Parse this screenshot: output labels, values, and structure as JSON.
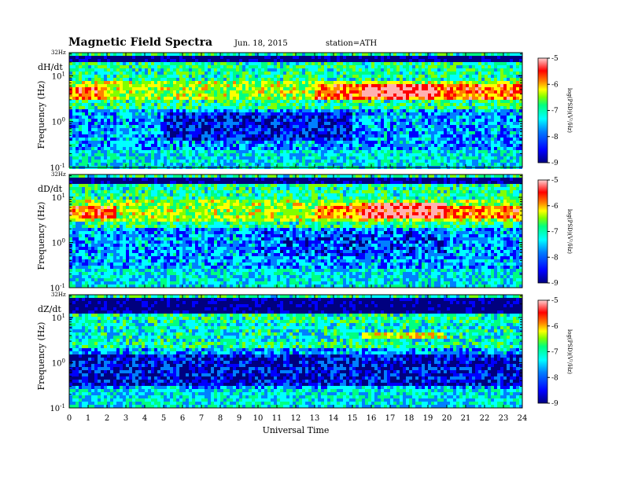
{
  "header": {
    "title": "Magnetic  Field  Spectra",
    "date": "Jun. 18, 2015",
    "station": "station=ATH"
  },
  "chart_data": [
    {
      "type": "heatmap",
      "panel_label": "dH/dt",
      "xlabel": "",
      "ylabel": "Frequency  (Hz)",
      "y_scale": "log",
      "ylim": [
        0.1,
        32
      ],
      "y_ticks": [
        {
          "value": 0.1,
          "base": "10",
          "exp": "-1"
        },
        {
          "value": 1,
          "base": "10",
          "exp": "0"
        },
        {
          "value": 10,
          "base": "10",
          "exp": "1"
        }
      ],
      "y_top_label": "32Hz",
      "colorbar": {
        "range": [
          -9,
          -5
        ],
        "ticks": [
          "-5",
          "-6",
          "-7",
          "-8",
          "-9"
        ],
        "label": "log(PSD)(V²/Hz)"
      },
      "features": [
        {
          "t0": 0,
          "t1": 24,
          "f0": 20,
          "f1": 26,
          "level": -8.9
        },
        {
          "t0": 0,
          "t1": 24,
          "f0": 3,
          "f1": 8,
          "level": -6.7
        },
        {
          "t0": 0,
          "t1": 2,
          "f0": 3,
          "f1": 6,
          "level": -5.9
        },
        {
          "t0": 13,
          "t1": 24,
          "f0": 3.2,
          "f1": 6.5,
          "level": -5.9
        },
        {
          "t0": 15.5,
          "t1": 19.5,
          "f0": 3.5,
          "f1": 7,
          "level": -5.3
        },
        {
          "t0": 5,
          "t1": 15,
          "f0": 0.4,
          "f1": 1.5,
          "level": -8.4
        }
      ]
    },
    {
      "type": "heatmap",
      "panel_label": "dD/dt",
      "xlabel": "",
      "ylabel": "Frequency  (Hz)",
      "y_scale": "log",
      "ylim": [
        0.1,
        32
      ],
      "y_ticks": [
        {
          "value": 0.1,
          "base": "10",
          "exp": "-1"
        },
        {
          "value": 1,
          "base": "10",
          "exp": "0"
        },
        {
          "value": 10,
          "base": "10",
          "exp": "1"
        }
      ],
      "y_top_label": "32Hz",
      "colorbar": {
        "range": [
          -9,
          -5
        ],
        "ticks": [
          "-5",
          "-6",
          "-7",
          "-8",
          "-9"
        ],
        "label": "log(PSD)(V²/Hz)"
      },
      "features": [
        {
          "t0": 0,
          "t1": 24,
          "f0": 20,
          "f1": 26,
          "level": -8.9
        },
        {
          "t0": 0,
          "t1": 24,
          "f0": 3,
          "f1": 9,
          "level": -6.7
        },
        {
          "t0": 0,
          "t1": 2.5,
          "f0": 3.5,
          "f1": 6,
          "level": -5.9
        },
        {
          "t0": 13,
          "t1": 24,
          "f0": 3.5,
          "f1": 6.5,
          "level": -5.9
        },
        {
          "t0": 15.5,
          "t1": 20,
          "f0": 3.5,
          "f1": 7,
          "level": -5.3
        },
        {
          "t0": 10,
          "t1": 20,
          "f0": 0.5,
          "f1": 1.8,
          "level": -8.2
        }
      ]
    },
    {
      "type": "heatmap",
      "panel_label": "dZ/dt",
      "xlabel": "Universal  Time",
      "ylabel": "Frequency  (Hz)",
      "y_scale": "log",
      "ylim": [
        0.1,
        32
      ],
      "y_ticks": [
        {
          "value": 0.1,
          "base": "10",
          "exp": "-1"
        },
        {
          "value": 1,
          "base": "10",
          "exp": "0"
        },
        {
          "value": 10,
          "base": "10",
          "exp": "1"
        }
      ],
      "y_top_label": "32Hz",
      "colorbar": {
        "range": [
          -9,
          -5
        ],
        "ticks": [
          "-5",
          "-6",
          "-7",
          "-8",
          "-9"
        ],
        "label": "log(PSD)(V²/Hz)"
      },
      "features": [
        {
          "t0": 0,
          "t1": 24,
          "f0": 12,
          "f1": 28,
          "level": -8.9
        },
        {
          "t0": 0,
          "t1": 24,
          "f0": 3,
          "f1": 8,
          "level": -7.5
        },
        {
          "t0": 15.5,
          "t1": 20,
          "f0": 3.5,
          "f1": 4.5,
          "level": -6.5
        },
        {
          "t0": 0,
          "t1": 24,
          "f0": 0.3,
          "f1": 1.5,
          "level": -8.5
        }
      ]
    }
  ],
  "x_axis": {
    "xlim": [
      0,
      24
    ],
    "ticks": [
      "0",
      "1",
      "2",
      "3",
      "4",
      "5",
      "6",
      "7",
      "8",
      "9",
      "10",
      "11",
      "12",
      "13",
      "14",
      "15",
      "16",
      "17",
      "18",
      "19",
      "20",
      "21",
      "22",
      "23",
      "24"
    ]
  },
  "palette": [
    "#00007f",
    "#0000ff",
    "#0080ff",
    "#00ffff",
    "#00ff80",
    "#80ff00",
    "#ffff00",
    "#ff8000",
    "#ff0000",
    "#ffb0b0"
  ]
}
